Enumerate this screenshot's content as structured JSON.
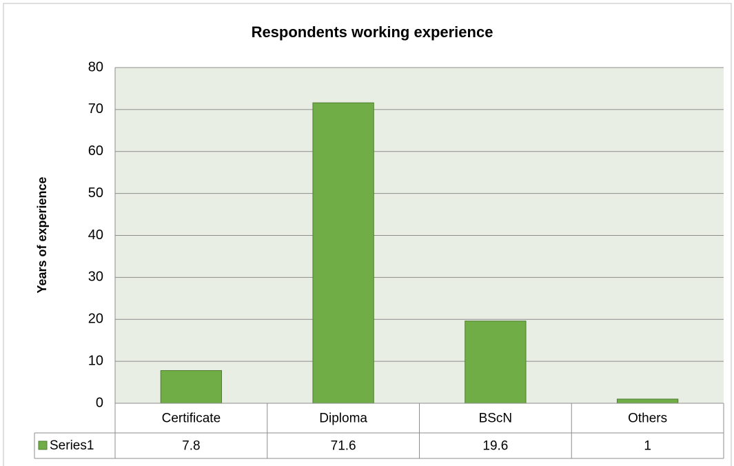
{
  "chart_data": {
    "type": "bar",
    "title": "Respondents working experience",
    "y_label": "Years of experience",
    "categories": [
      "Certificate",
      "Diploma",
      "BScN",
      "Others"
    ],
    "series": [
      {
        "name": "Series1",
        "color": "#70ad47",
        "values": [
          7.8,
          71.6,
          19.6,
          1
        ]
      }
    ],
    "ylim": [
      0,
      80
    ],
    "yticks": [
      0,
      10,
      20,
      30,
      40,
      50,
      60,
      70,
      80
    ],
    "grid": true,
    "data_table": true
  }
}
